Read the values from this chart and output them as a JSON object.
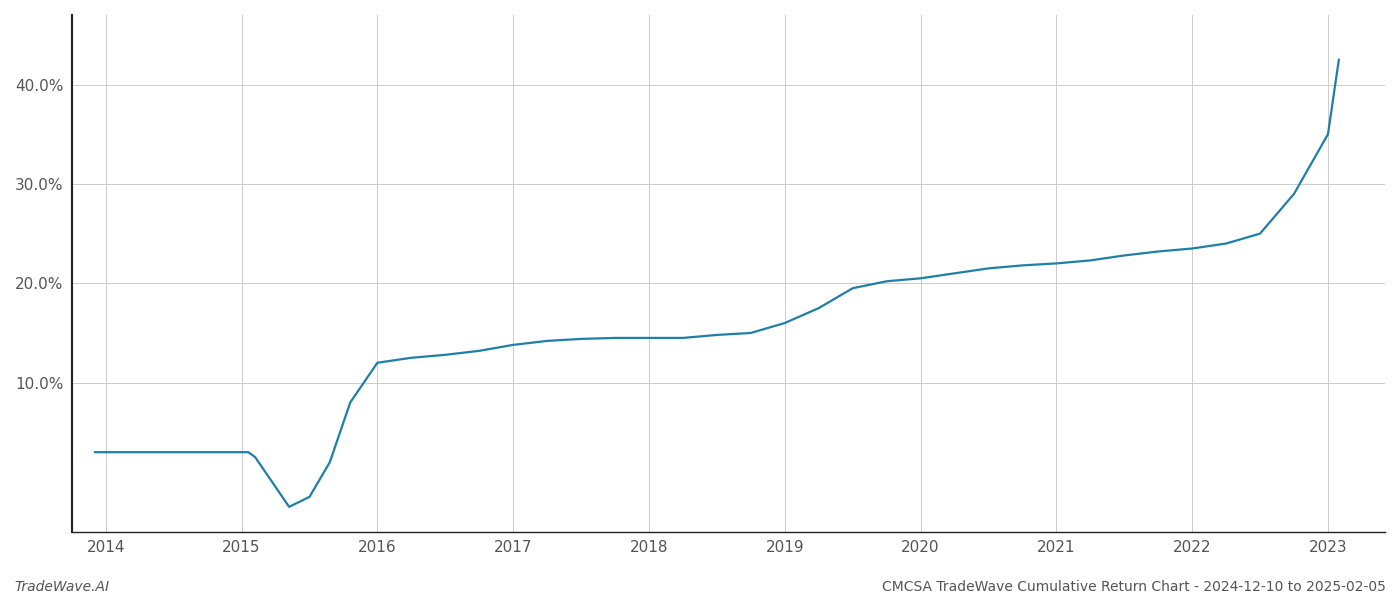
{
  "title": "CMCSA TradeWave Cumulative Return Chart - 2024-12-10 to 2025-02-05",
  "watermark": "TradeWave.AI",
  "line_color": "#1f7fa6",
  "background_color": "#ffffff",
  "grid_color": "#cccccc",
  "x_years": [
    2013.92,
    2014.0,
    2014.25,
    2014.5,
    2014.75,
    2015.0,
    2015.05,
    2015.1,
    2015.2,
    2015.35,
    2015.5,
    2015.65,
    2015.8,
    2016.0,
    2016.25,
    2016.5,
    2016.75,
    2017.0,
    2017.25,
    2017.5,
    2017.75,
    2018.0,
    2018.1,
    2018.25,
    2018.5,
    2018.75,
    2019.0,
    2019.25,
    2019.5,
    2019.75,
    2020.0,
    2020.25,
    2020.5,
    2020.75,
    2021.0,
    2021.25,
    2021.5,
    2021.75,
    2022.0,
    2022.25,
    2022.5,
    2022.75,
    2023.0,
    2023.08
  ],
  "y_values": [
    3.0,
    3.0,
    3.0,
    3.0,
    3.0,
    3.0,
    3.0,
    2.5,
    0.5,
    -2.5,
    -1.5,
    2.0,
    8.0,
    12.0,
    12.5,
    12.8,
    13.2,
    13.8,
    14.2,
    14.4,
    14.5,
    14.5,
    14.5,
    14.5,
    14.8,
    15.0,
    16.0,
    17.5,
    19.5,
    20.2,
    20.5,
    21.0,
    21.5,
    21.8,
    22.0,
    22.3,
    22.8,
    23.2,
    23.5,
    24.0,
    25.0,
    29.0,
    35.0,
    42.5
  ],
  "xlim": [
    2013.75,
    2023.42
  ],
  "ylim": [
    -5,
    47
  ],
  "xtick_years": [
    2014,
    2015,
    2016,
    2017,
    2018,
    2019,
    2020,
    2021,
    2022,
    2023
  ],
  "ytick_values": [
    10.0,
    20.0,
    30.0,
    40.0
  ],
  "ytick_labels": [
    "10.0%",
    "20.0%",
    "30.0%",
    "40.0%"
  ],
  "line_width": 1.6,
  "figsize": [
    14,
    6
  ],
  "dpi": 100
}
